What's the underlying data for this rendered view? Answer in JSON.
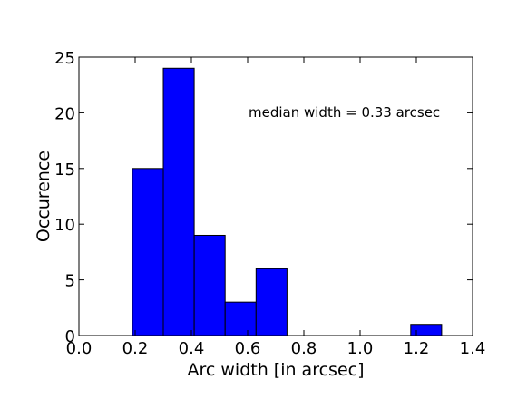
{
  "chart_data": {
    "type": "histogram",
    "title": "",
    "xlabel": "Arc width [in arcsec]",
    "ylabel": "Occurence",
    "xlim": [
      0.0,
      1.4
    ],
    "ylim": [
      0,
      25
    ],
    "xticks": [
      "0.0",
      "0.2",
      "0.4",
      "0.6",
      "0.8",
      "1.0",
      "1.2",
      "1.4"
    ],
    "yticks": [
      "0",
      "5",
      "10",
      "15",
      "20",
      "25"
    ],
    "grid": false,
    "legend": false,
    "bar_color": "#0000ff",
    "edge_color": "#000000",
    "annotation": "median width = 0.33 arcsec",
    "bins": [
      {
        "x0": 0.19,
        "x1": 0.3,
        "count": 15
      },
      {
        "x0": 0.3,
        "x1": 0.41,
        "count": 24
      },
      {
        "x0": 0.41,
        "x1": 0.52,
        "count": 9
      },
      {
        "x0": 0.52,
        "x1": 0.63,
        "count": 3
      },
      {
        "x0": 0.63,
        "x1": 0.74,
        "count": 6
      },
      {
        "x0": 0.74,
        "x1": 0.85,
        "count": 0
      },
      {
        "x0": 0.85,
        "x1": 0.96,
        "count": 0
      },
      {
        "x0": 0.96,
        "x1": 1.07,
        "count": 0
      },
      {
        "x0": 1.07,
        "x1": 1.18,
        "count": 0
      },
      {
        "x0": 1.18,
        "x1": 1.29,
        "count": 1
      }
    ]
  }
}
